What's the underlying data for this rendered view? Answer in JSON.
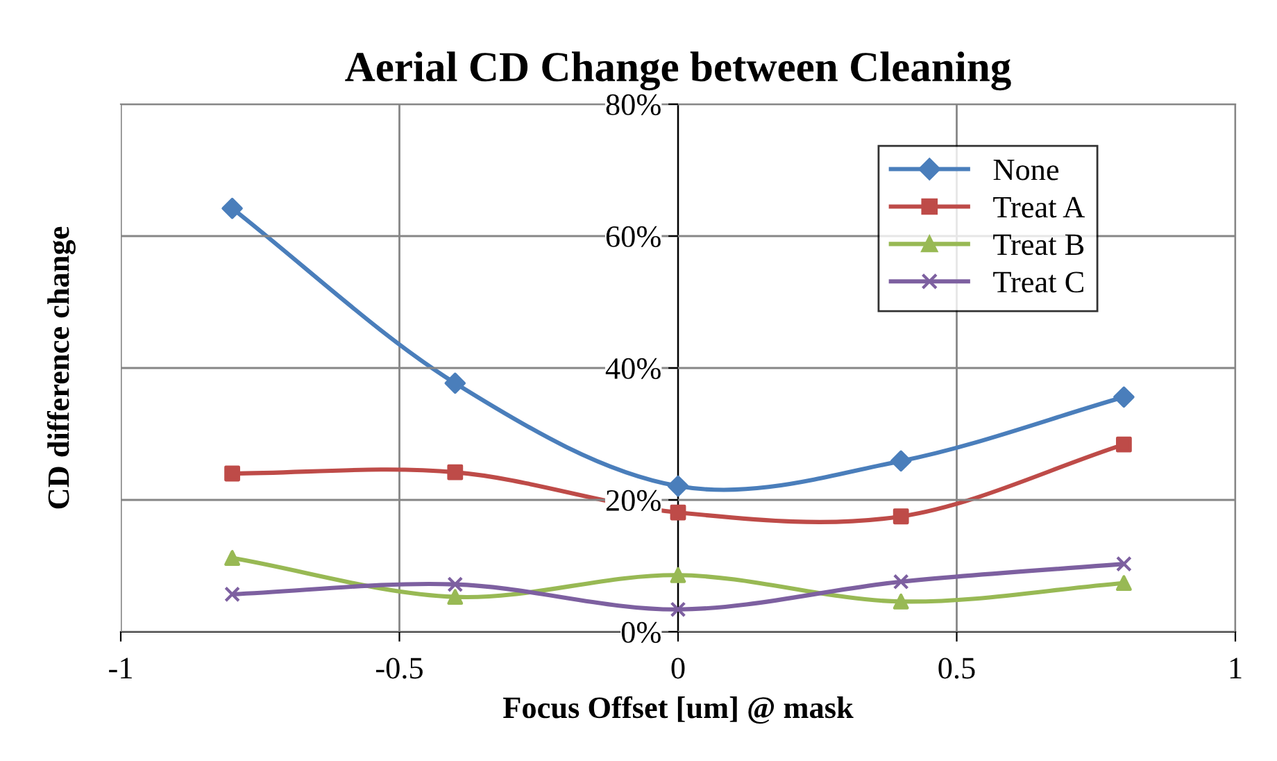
{
  "chart_data": {
    "type": "line",
    "title": "Aerial CD Change between Cleaning",
    "xlabel": "Focus Offset [um] @ mask",
    "ylabel": "CD difference change",
    "x": [
      -0.8,
      -0.4,
      0,
      0.4,
      0.8
    ],
    "series": [
      {
        "name": "None",
        "color": "#4a7ebb",
        "marker": "diamond",
        "values": [
          64.2,
          37.7,
          22.1,
          25.9,
          35.6
        ]
      },
      {
        "name": "Treat A",
        "color": "#be4b48",
        "marker": "square",
        "values": [
          24.0,
          24.2,
          18.1,
          17.5,
          28.4
        ]
      },
      {
        "name": "Treat B",
        "color": "#98b954",
        "marker": "triangle",
        "values": [
          11.2,
          5.3,
          8.6,
          4.6,
          7.4
        ]
      },
      {
        "name": "Treat C",
        "color": "#7d60a0",
        "marker": "cross",
        "values": [
          5.7,
          7.2,
          3.4,
          7.6,
          10.3
        ]
      }
    ],
    "xlim": [
      -1,
      1
    ],
    "xticks": [
      -1,
      -0.5,
      0,
      0.5,
      1
    ],
    "ylim": [
      0,
      80
    ],
    "yticks": [
      {
        "value": 0,
        "label": "0%"
      },
      {
        "value": 20,
        "label": "20%"
      },
      {
        "value": 40,
        "label": "40%"
      },
      {
        "value": 60,
        "label": "60%"
      },
      {
        "value": 80,
        "label": "80%"
      }
    ],
    "grid": true,
    "legend": "top right",
    "line_style": "solid"
  }
}
